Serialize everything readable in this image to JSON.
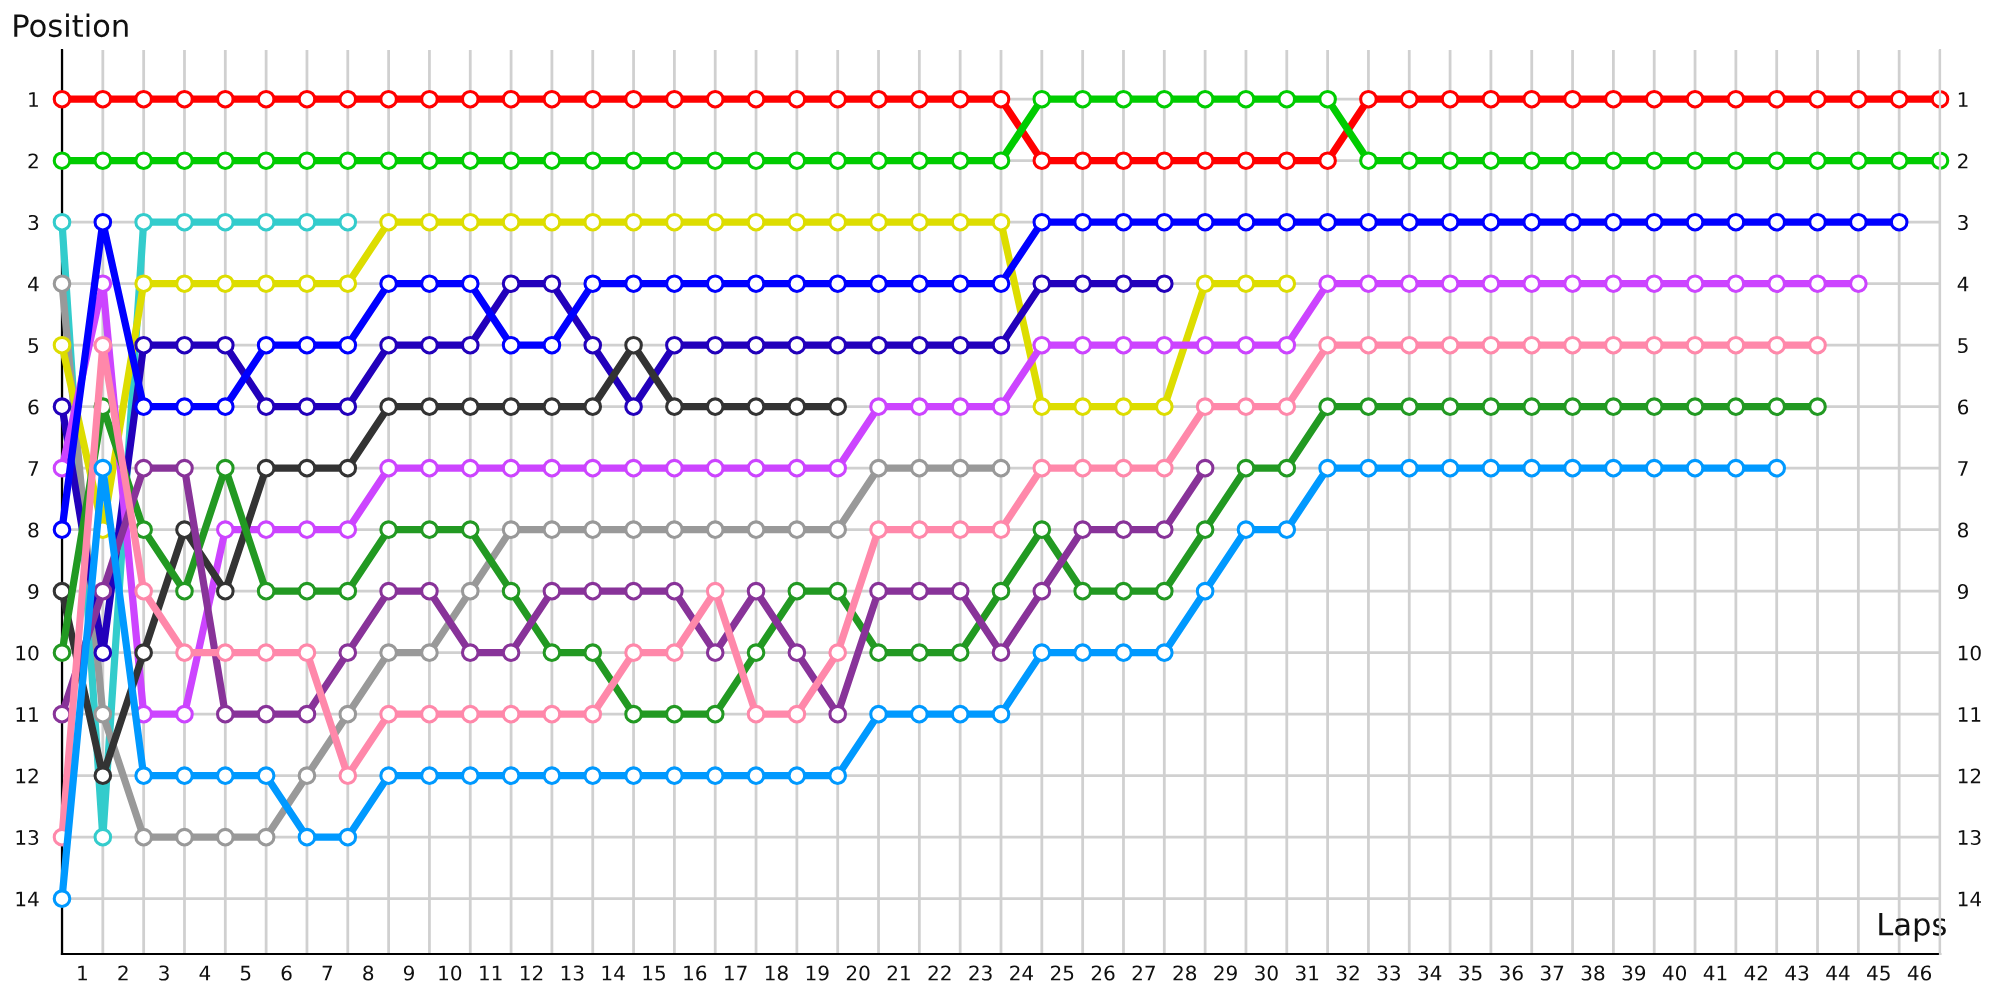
{
  "chart_data": {
    "type": "line",
    "xlabel": "Laps",
    "ylabel": "Position",
    "marker": "circle",
    "line_style": "solid",
    "grid": true,
    "x": [
      0,
      1,
      2,
      3,
      4,
      5,
      6,
      7,
      8,
      9,
      10,
      11,
      12,
      13,
      14,
      15,
      16,
      17,
      18,
      19,
      20,
      21,
      22,
      23,
      24,
      25,
      26,
      27,
      28,
      29,
      30,
      31,
      32,
      33,
      34,
      35,
      36,
      37,
      38,
      39,
      40,
      41,
      42,
      43,
      44,
      45,
      46
    ],
    "xlim": [
      0,
      46
    ],
    "xticks": [
      {
        "value": 0,
        "label": null
      },
      {
        "value": 0.5,
        "label": "1"
      },
      {
        "value": 1,
        "label": null
      },
      {
        "value": 1.5,
        "label": "2"
      },
      {
        "value": 2,
        "label": null
      },
      {
        "value": 2.5,
        "label": "3"
      },
      {
        "value": 3,
        "label": null
      },
      {
        "value": 3.5,
        "label": "4"
      },
      {
        "value": 4,
        "label": null
      },
      {
        "value": 4.5,
        "label": "5"
      },
      {
        "value": 5,
        "label": null
      },
      {
        "value": 5.5,
        "label": "6"
      },
      {
        "value": 6,
        "label": null
      },
      {
        "value": 6.5,
        "label": "7"
      },
      {
        "value": 7,
        "label": null
      },
      {
        "value": 7.5,
        "label": "8"
      },
      {
        "value": 8,
        "label": null
      },
      {
        "value": 8.5,
        "label": "9"
      },
      {
        "value": 9,
        "label": null
      },
      {
        "value": 9.5,
        "label": "10"
      },
      {
        "value": 10,
        "label": null
      },
      {
        "value": 10.5,
        "label": "11"
      },
      {
        "value": 11,
        "label": null
      },
      {
        "value": 11.5,
        "label": "12"
      },
      {
        "value": 12,
        "label": null
      },
      {
        "value": 12.5,
        "label": "13"
      },
      {
        "value": 13,
        "label": null
      },
      {
        "value": 13.5,
        "label": "14"
      },
      {
        "value": 14,
        "label": null
      },
      {
        "value": 14.5,
        "label": "15"
      },
      {
        "value": 15,
        "label": null
      },
      {
        "value": 15.5,
        "label": "16"
      },
      {
        "value": 16,
        "label": null
      },
      {
        "value": 16.5,
        "label": "17"
      },
      {
        "value": 17,
        "label": null
      },
      {
        "value": 17.5,
        "label": "18"
      },
      {
        "value": 18,
        "label": null
      },
      {
        "value": 18.5,
        "label": "19"
      },
      {
        "value": 19,
        "label": null
      },
      {
        "value": 19.5,
        "label": "20"
      },
      {
        "value": 20,
        "label": null
      },
      {
        "value": 20.5,
        "label": "21"
      },
      {
        "value": 21,
        "label": null
      },
      {
        "value": 21.5,
        "label": "22"
      },
      {
        "value": 22,
        "label": null
      },
      {
        "value": 22.5,
        "label": "23"
      },
      {
        "value": 23,
        "label": null
      },
      {
        "value": 23.5,
        "label": "24"
      },
      {
        "value": 24,
        "label": null
      },
      {
        "value": 24.5,
        "label": "25"
      },
      {
        "value": 25,
        "label": null
      },
      {
        "value": 25.5,
        "label": "26"
      },
      {
        "value": 26,
        "label": null
      },
      {
        "value": 26.5,
        "label": "27"
      },
      {
        "value": 27,
        "label": null
      },
      {
        "value": 27.5,
        "label": "28"
      },
      {
        "value": 28,
        "label": null
      },
      {
        "value": 28.5,
        "label": "29"
      },
      {
        "value": 29,
        "label": null
      },
      {
        "value": 29.5,
        "label": "30"
      },
      {
        "value": 30,
        "label": null
      },
      {
        "value": 30.5,
        "label": "31"
      },
      {
        "value": 31,
        "label": null
      },
      {
        "value": 31.5,
        "label": "32"
      },
      {
        "value": 32,
        "label": null
      },
      {
        "value": 32.5,
        "label": "33"
      },
      {
        "value": 33,
        "label": null
      },
      {
        "value": 33.5,
        "label": "34"
      },
      {
        "value": 34,
        "label": null
      },
      {
        "value": 34.5,
        "label": "35"
      },
      {
        "value": 35,
        "label": null
      },
      {
        "value": 35.5,
        "label": "36"
      },
      {
        "value": 36,
        "label": null
      },
      {
        "value": 36.5,
        "label": "37"
      },
      {
        "value": 37,
        "label": null
      },
      {
        "value": 37.5,
        "label": "38"
      },
      {
        "value": 38,
        "label": null
      },
      {
        "value": 38.5,
        "label": "39"
      },
      {
        "value": 39,
        "label": null
      },
      {
        "value": 39.5,
        "label": "40"
      },
      {
        "value": 40,
        "label": null
      },
      {
        "value": 40.5,
        "label": "41"
      },
      {
        "value": 41,
        "label": null
      },
      {
        "value": 41.5,
        "label": "42"
      },
      {
        "value": 42,
        "label": null
      },
      {
        "value": 42.5,
        "label": "43"
      },
      {
        "value": 43,
        "label": null
      },
      {
        "value": 43.5,
        "label": "44"
      },
      {
        "value": 44,
        "label": null
      },
      {
        "value": 44.5,
        "label": "45"
      },
      {
        "value": 45,
        "label": null
      },
      {
        "value": 45.5,
        "label": "46"
      },
      {
        "value": 46,
        "label": null
      }
    ],
    "ylim": [
      14.9,
      0.2
    ],
    "yticks": [
      1,
      2,
      3,
      4,
      5,
      6,
      7,
      8,
      9,
      10,
      11,
      12,
      13,
      14
    ],
    "y2lim": [
      14.9,
      0.2
    ],
    "y2ticks": [
      1,
      2,
      3,
      4,
      5,
      6,
      7,
      8,
      9,
      10,
      11,
      12,
      13,
      14
    ],
    "series": [
      {
        "color": "#ff0000",
        "values": [
          1,
          1,
          1,
          1,
          1,
          1,
          1,
          1,
          1,
          1,
          1,
          1,
          1,
          1,
          1,
          1,
          1,
          1,
          1,
          1,
          1,
          1,
          1,
          1,
          2,
          2,
          2,
          2,
          2,
          2,
          2,
          2,
          1,
          1,
          1,
          1,
          1,
          1,
          1,
          1,
          1,
          1,
          1,
          1,
          1,
          1,
          1
        ]
      },
      {
        "color": "#00cc00",
        "values": [
          2,
          2,
          2,
          2,
          2,
          2,
          2,
          2,
          2,
          2,
          2,
          2,
          2,
          2,
          2,
          2,
          2,
          2,
          2,
          2,
          2,
          2,
          2,
          2,
          1,
          1,
          1,
          1,
          1,
          1,
          1,
          1,
          2,
          2,
          2,
          2,
          2,
          2,
          2,
          2,
          2,
          2,
          2,
          2,
          2,
          2,
          2
        ]
      },
      {
        "color": "#33cccc",
        "values": [
          3,
          13,
          3,
          3,
          3,
          3,
          3,
          3,
          null,
          null,
          null,
          null,
          null,
          null,
          null,
          null,
          null,
          null,
          null,
          null,
          null,
          null,
          null,
          null,
          null,
          null,
          null,
          null,
          null,
          null,
          null,
          null,
          null,
          null,
          null,
          null,
          null,
          null,
          null,
          null,
          null,
          null,
          null,
          null,
          null,
          null,
          null
        ]
      },
      {
        "color": "#999999",
        "values": [
          4,
          11,
          13,
          13,
          13,
          13,
          12,
          11,
          10,
          10,
          9,
          8,
          8,
          8,
          8,
          8,
          8,
          8,
          8,
          8,
          7,
          7,
          7,
          7,
          null,
          null,
          null,
          null,
          null,
          null,
          null,
          null,
          null,
          null,
          null,
          null,
          null,
          null,
          null,
          null,
          null,
          null,
          null,
          null,
          null,
          null,
          null
        ]
      },
      {
        "color": "#dddd00",
        "values": [
          5,
          8,
          4,
          4,
          4,
          4,
          4,
          4,
          3,
          3,
          3,
          3,
          3,
          3,
          3,
          3,
          3,
          3,
          3,
          3,
          3,
          3,
          3,
          3,
          6,
          6,
          6,
          6,
          4,
          4,
          4,
          null,
          null,
          null,
          null,
          null,
          null,
          null,
          null,
          null,
          null,
          null,
          null,
          null,
          null,
          null,
          null
        ]
      },
      {
        "color": "#2200bb",
        "values": [
          6,
          10,
          5,
          5,
          5,
          6,
          6,
          6,
          5,
          5,
          5,
          4,
          4,
          5,
          6,
          5,
          5,
          5,
          5,
          5,
          5,
          5,
          5,
          5,
          4,
          4,
          4,
          4,
          null,
          null,
          null,
          null,
          null,
          null,
          null,
          null,
          null,
          null,
          null,
          null,
          null,
          null,
          null,
          null,
          null,
          null,
          null
        ]
      },
      {
        "color": "#cc44ff",
        "values": [
          7,
          4,
          11,
          11,
          8,
          8,
          8,
          8,
          7,
          7,
          7,
          7,
          7,
          7,
          7,
          7,
          7,
          7,
          7,
          7,
          6,
          6,
          6,
          6,
          5,
          5,
          5,
          5,
          5,
          5,
          5,
          4,
          4,
          4,
          4,
          4,
          4,
          4,
          4,
          4,
          4,
          4,
          4,
          4,
          4,
          null,
          null
        ]
      },
      {
        "color": "#0000ff",
        "values": [
          8,
          3,
          6,
          6,
          6,
          5,
          5,
          5,
          4,
          4,
          4,
          5,
          5,
          4,
          4,
          4,
          4,
          4,
          4,
          4,
          4,
          4,
          4,
          4,
          3,
          3,
          3,
          3,
          3,
          3,
          3,
          3,
          3,
          3,
          3,
          3,
          3,
          3,
          3,
          3,
          3,
          3,
          3,
          3,
          3,
          3,
          null
        ]
      },
      {
        "color": "#333333",
        "values": [
          9,
          12,
          10,
          8,
          9,
          7,
          7,
          7,
          6,
          6,
          6,
          6,
          6,
          6,
          5,
          6,
          6,
          6,
          6,
          6,
          null,
          null,
          null,
          null,
          null,
          null,
          null,
          null,
          null,
          null,
          null,
          null,
          null,
          null,
          null,
          null,
          null,
          null,
          null,
          null,
          null,
          null,
          null,
          null,
          null,
          null,
          null
        ]
      },
      {
        "color": "#229922",
        "values": [
          10,
          6,
          8,
          9,
          7,
          9,
          9,
          9,
          8,
          8,
          8,
          9,
          10,
          10,
          11,
          11,
          11,
          10,
          9,
          9,
          10,
          10,
          10,
          9,
          8,
          9,
          9,
          9,
          8,
          7,
          7,
          6,
          6,
          6,
          6,
          6,
          6,
          6,
          6,
          6,
          6,
          6,
          6,
          6,
          null,
          null,
          null
        ]
      },
      {
        "color": "#883399",
        "values": [
          11,
          9,
          7,
          7,
          11,
          11,
          11,
          10,
          9,
          9,
          10,
          10,
          9,
          9,
          9,
          9,
          10,
          9,
          10,
          11,
          9,
          9,
          9,
          10,
          9,
          8,
          8,
          8,
          7,
          null,
          null,
          null,
          null,
          null,
          null,
          null,
          null,
          null,
          null,
          null,
          null,
          null,
          null,
          null,
          null,
          null,
          null
        ]
      },
      {
        "color": "#ff88aa",
        "values": [
          13,
          5,
          9,
          10,
          10,
          10,
          10,
          12,
          11,
          11,
          11,
          11,
          11,
          11,
          10,
          10,
          9,
          11,
          11,
          10,
          8,
          8,
          8,
          8,
          7,
          7,
          7,
          7,
          6,
          6,
          6,
          5,
          5,
          5,
          5,
          5,
          5,
          5,
          5,
          5,
          5,
          5,
          5,
          5,
          null,
          null,
          null
        ]
      },
      {
        "color": "#0099ff",
        "values": [
          14,
          7,
          12,
          12,
          12,
          12,
          13,
          13,
          12,
          12,
          12,
          12,
          12,
          12,
          12,
          12,
          12,
          12,
          12,
          12,
          11,
          11,
          11,
          11,
          10,
          10,
          10,
          10,
          9,
          8,
          8,
          7,
          7,
          7,
          7,
          7,
          7,
          7,
          7,
          7,
          7,
          7,
          7,
          null,
          null,
          null,
          null
        ]
      }
    ]
  }
}
